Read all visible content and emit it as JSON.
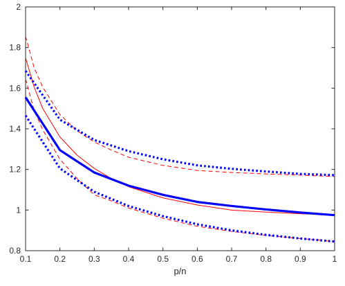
{
  "chart_data": {
    "type": "line",
    "xlabel": "p/n",
    "ylabel": "",
    "xlim": [
      0.1,
      1
    ],
    "ylim": [
      0.8,
      2
    ],
    "x_ticks": [
      "0.1",
      "0.2",
      "0.3",
      "0.4",
      "0.5",
      "0.6",
      "0.7",
      "0.8",
      "0.9",
      "1"
    ],
    "y_ticks": [
      "0.8",
      "1",
      "1.2",
      "1.4",
      "1.6",
      "1.8",
      "2"
    ],
    "grid": false,
    "legend": "none",
    "series": [
      {
        "color": "#0000ff",
        "style": "solid-thick",
        "x": [
          0.1,
          0.2,
          0.3,
          0.4,
          0.5,
          0.6,
          0.7,
          0.8,
          0.9,
          1.0
        ],
        "y": [
          1.555,
          1.295,
          1.185,
          1.12,
          1.075,
          1.04,
          1.02,
          1.003,
          0.988,
          0.975
        ]
      },
      {
        "color": "#0000ff",
        "style": "dotted-thick",
        "x": [
          0.1,
          0.2,
          0.3,
          0.4,
          0.5,
          0.6,
          0.7,
          0.8,
          0.9,
          1.0
        ],
        "y": [
          1.685,
          1.445,
          1.345,
          1.29,
          1.25,
          1.22,
          1.203,
          1.19,
          1.178,
          1.172
        ]
      },
      {
        "color": "#0000ff",
        "style": "dotted-thick",
        "x": [
          0.1,
          0.2,
          0.3,
          0.4,
          0.5,
          0.6,
          0.7,
          0.8,
          0.9,
          1.0
        ],
        "y": [
          1.465,
          1.205,
          1.09,
          1.02,
          0.97,
          0.93,
          0.9,
          0.878,
          0.86,
          0.845
        ]
      },
      {
        "color": "#ff0000",
        "style": "solid-thin",
        "x": [
          0.1,
          0.125,
          0.15,
          0.2,
          0.25,
          0.3,
          0.35,
          0.4,
          0.5,
          0.6,
          0.7,
          0.8,
          0.9,
          1.0
        ],
        "y": [
          1.75,
          1.605,
          1.5,
          1.36,
          1.27,
          1.205,
          1.155,
          1.115,
          1.06,
          1.025,
          1.0,
          0.99,
          0.982,
          0.975
        ]
      },
      {
        "color": "#ff0000",
        "style": "dashed",
        "x": [
          0.1,
          0.125,
          0.15,
          0.2,
          0.25,
          0.3,
          0.35,
          0.4,
          0.5,
          0.6,
          0.7,
          0.8,
          0.9,
          1.0
        ],
        "y": [
          1.855,
          1.7,
          1.605,
          1.47,
          1.39,
          1.335,
          1.295,
          1.26,
          1.22,
          1.195,
          1.185,
          1.178,
          1.172,
          1.165
        ]
      },
      {
        "color": "#ff0000",
        "style": "dashed",
        "x": [
          0.1,
          0.125,
          0.15,
          0.2,
          0.25,
          0.3,
          0.35,
          0.4,
          0.5,
          0.6,
          0.7,
          0.8,
          0.9,
          1.0
        ],
        "y": [
          1.645,
          1.49,
          1.395,
          1.25,
          1.155,
          1.075,
          1.045,
          1.01,
          0.96,
          0.92,
          0.895,
          0.875,
          0.86,
          0.845
        ]
      }
    ]
  }
}
